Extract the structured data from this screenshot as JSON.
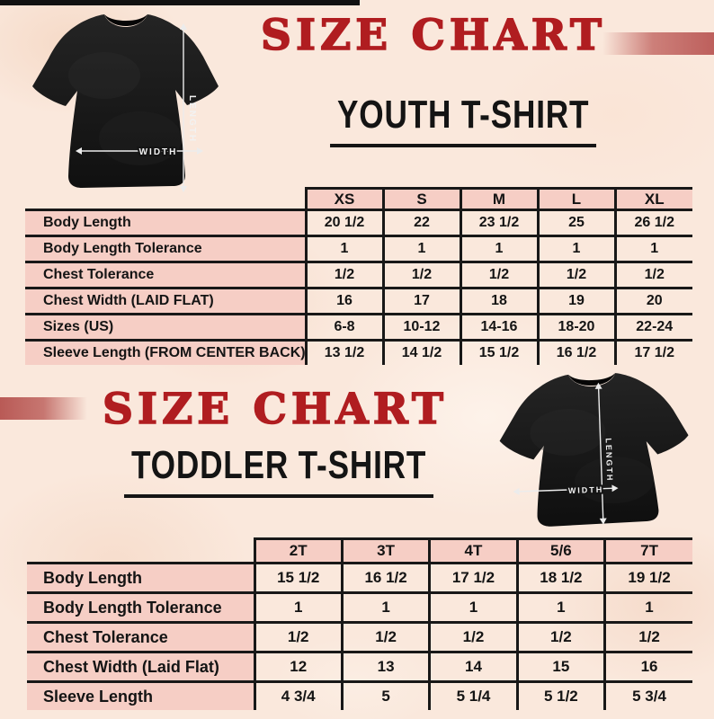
{
  "poster": {
    "colors": {
      "accent_red": "#b01d20",
      "cell_pink": "#f6cec5",
      "paper_background": "#fae8dc",
      "table_line_black": "#181818",
      "accent_bar_red": "#bd5f5c"
    },
    "youth": {
      "title": "SIZE CHART",
      "subtitle": "YOUTH T-SHIRT",
      "shirt": {
        "length_label": "LENGTH",
        "width_label": "WIDTH"
      },
      "table": {
        "columns": [
          "XS",
          "S",
          "M",
          "L",
          "XL"
        ],
        "rows": [
          {
            "label": "Body Length",
            "values": [
              "20 1/2",
              "22",
              "23 1/2",
              "25",
              "26 1/2"
            ]
          },
          {
            "label": "Body Length Tolerance",
            "values": [
              "1",
              "1",
              "1",
              "1",
              "1"
            ]
          },
          {
            "label": "Chest Tolerance",
            "values": [
              "1/2",
              "1/2",
              "1/2",
              "1/2",
              "1/2"
            ]
          },
          {
            "label": "Chest Width (LAID FLAT)",
            "values": [
              "16",
              "17",
              "18",
              "19",
              "20"
            ]
          },
          {
            "label": "Sizes (US)",
            "values": [
              "6-8",
              "10-12",
              "14-16",
              "18-20",
              "22-24"
            ]
          },
          {
            "label": "Sleeve Length (FROM CENTER BACK)",
            "values": [
              "13 1/2",
              "14 1/2",
              "15 1/2",
              "16 1/2",
              "17 1/2"
            ]
          }
        ]
      }
    },
    "toddler": {
      "title": "SIZE CHART",
      "subtitle": "TODDLER T-SHIRT",
      "shirt": {
        "length_label": "LENGTH",
        "width_label": "WIDTH"
      },
      "table": {
        "columns": [
          "2T",
          "3T",
          "4T",
          "5/6",
          "7T"
        ],
        "rows": [
          {
            "label": "Body Length",
            "values": [
              "15 1/2",
              "16 1/2",
              "17 1/2",
              "18 1/2",
              "19 1/2"
            ]
          },
          {
            "label": "Body Length Tolerance",
            "values": [
              "1",
              "1",
              "1",
              "1",
              "1"
            ]
          },
          {
            "label": "Chest Tolerance",
            "values": [
              "1/2",
              "1/2",
              "1/2",
              "1/2",
              "1/2"
            ]
          },
          {
            "label": "Chest Width (Laid Flat)",
            "values": [
              "12",
              "13",
              "14",
              "15",
              "16"
            ]
          },
          {
            "label": "Sleeve Length",
            "values": [
              "4 3/4",
              "5",
              "5 1/4",
              "5 1/2",
              "5 3/4"
            ]
          }
        ]
      }
    }
  }
}
